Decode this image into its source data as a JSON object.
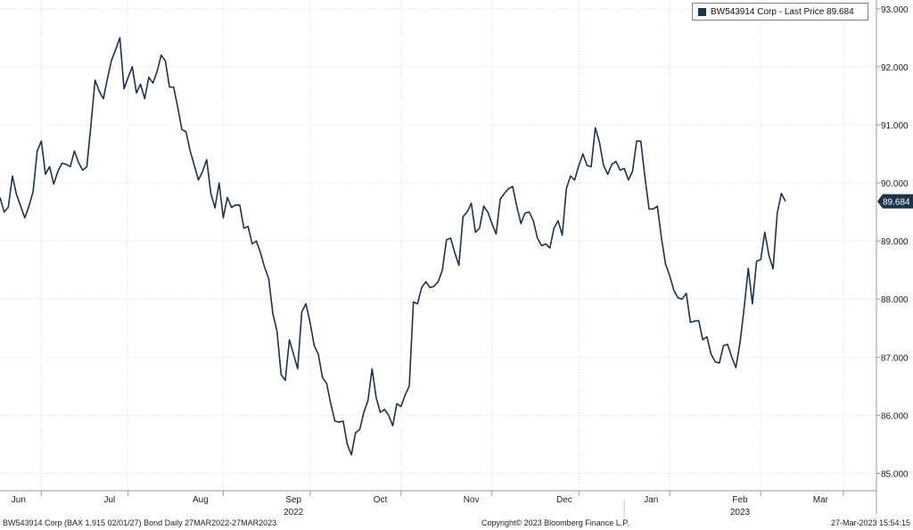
{
  "chart_data": {
    "type": "line",
    "series": [
      {
        "name": "BW543914 Corp - Last Price 89.684",
        "color": "#1d3349",
        "last_value_label": "89.684",
        "last_value": 89.684,
        "values": [
          89.75,
          89.5,
          89.58,
          90.12,
          89.8,
          89.6,
          89.4,
          89.6,
          89.85,
          90.55,
          90.72,
          90.15,
          90.28,
          89.98,
          90.2,
          90.34,
          90.32,
          90.28,
          90.55,
          90.35,
          90.22,
          90.28,
          91.0,
          91.77,
          91.58,
          91.45,
          91.8,
          92.12,
          92.3,
          92.5,
          91.62,
          91.82,
          92.0,
          91.55,
          91.7,
          91.45,
          91.82,
          91.72,
          91.92,
          92.2,
          92.1,
          91.65,
          91.65,
          91.3,
          90.92,
          90.88,
          90.55,
          90.3,
          90.05,
          90.2,
          90.4,
          89.82,
          89.57,
          90.0,
          89.4,
          89.75,
          89.58,
          89.62,
          89.62,
          89.22,
          89.25,
          88.95,
          89.0,
          88.8,
          88.55,
          88.35,
          87.75,
          87.45,
          86.7,
          86.6,
          87.3,
          87.05,
          86.8,
          87.78,
          87.92,
          87.6,
          87.2,
          87.05,
          86.65,
          86.55,
          86.2,
          85.9,
          85.88,
          85.9,
          85.5,
          85.32,
          85.7,
          85.75,
          86.05,
          86.25,
          86.8,
          86.3,
          86.05,
          86.1,
          86.0,
          85.82,
          86.2,
          86.15,
          86.35,
          86.5,
          87.95,
          87.92,
          88.2,
          88.3,
          88.2,
          88.22,
          88.3,
          88.5,
          89.02,
          89.05,
          88.8,
          88.58,
          89.42,
          89.5,
          89.65,
          89.15,
          89.22,
          89.6,
          89.5,
          89.3,
          89.12,
          89.72,
          89.82,
          89.9,
          89.94,
          89.6,
          89.3,
          89.48,
          89.5,
          89.35,
          89.05,
          88.92,
          88.95,
          88.88,
          89.22,
          89.35,
          89.1,
          89.9,
          90.12,
          90.05,
          90.3,
          90.5,
          90.3,
          90.28,
          90.95,
          90.7,
          90.3,
          90.15,
          90.32,
          90.37,
          90.22,
          90.25,
          90.05,
          90.2,
          90.72,
          90.72,
          90.1,
          89.55,
          89.55,
          89.6,
          89.05,
          88.6,
          88.4,
          88.15,
          88.02,
          88.0,
          88.1,
          87.6,
          87.62,
          87.63,
          87.3,
          87.35,
          87.05,
          86.92,
          86.9,
          87.2,
          87.22,
          87.0,
          86.82,
          87.25,
          87.85,
          88.53,
          87.92,
          88.65,
          88.68,
          89.15,
          88.75,
          88.52,
          89.48,
          89.82,
          89.684
        ]
      }
    ],
    "x_labels": [
      "Jun",
      "Jul",
      "Aug",
      "Sep",
      "Oct",
      "Nov",
      "Dec",
      "Jan",
      "Feb",
      "Mar"
    ],
    "x_label_positions": [
      4.5,
      26.5,
      48.5,
      71,
      92,
      114,
      136.5,
      157.5,
      179,
      198.5
    ],
    "x_tick_positions": [
      10,
      31,
      54,
      75,
      97,
      119,
      140,
      162,
      184,
      204
    ],
    "year_labels": [
      {
        "text": "2022",
        "pos": 71
      },
      {
        "text": "2023",
        "pos": 179
      }
    ],
    "year_divider_pos": 151,
    "y_ticks": [
      85.0,
      86.0,
      87.0,
      88.0,
      89.0,
      90.0,
      91.0,
      92.0,
      93.0
    ],
    "y_tick_labels": [
      "85.000",
      "86.000",
      "87.000",
      "88.000",
      "89.000",
      "90.000",
      "91.000",
      "92.000",
      "93.000"
    ],
    "ylim": [
      84.7,
      93.15
    ],
    "xlim": [
      0,
      212
    ],
    "grid": true,
    "legend_position": "top-right"
  },
  "footer": {
    "left": "BW543914 Corp (BAX 1.915 02/01/27) Bond  Daily 27MAR2022-27MAR2023",
    "center": "Copyright© 2023 Bloomberg Finance L.P.",
    "right": "27-Mar-2023 15:54:15"
  },
  "colors": {
    "line": "#1d3349",
    "grid": "#d9d9d9",
    "axis": "#9a9a9a",
    "last_value_bg": "#1d3349"
  }
}
